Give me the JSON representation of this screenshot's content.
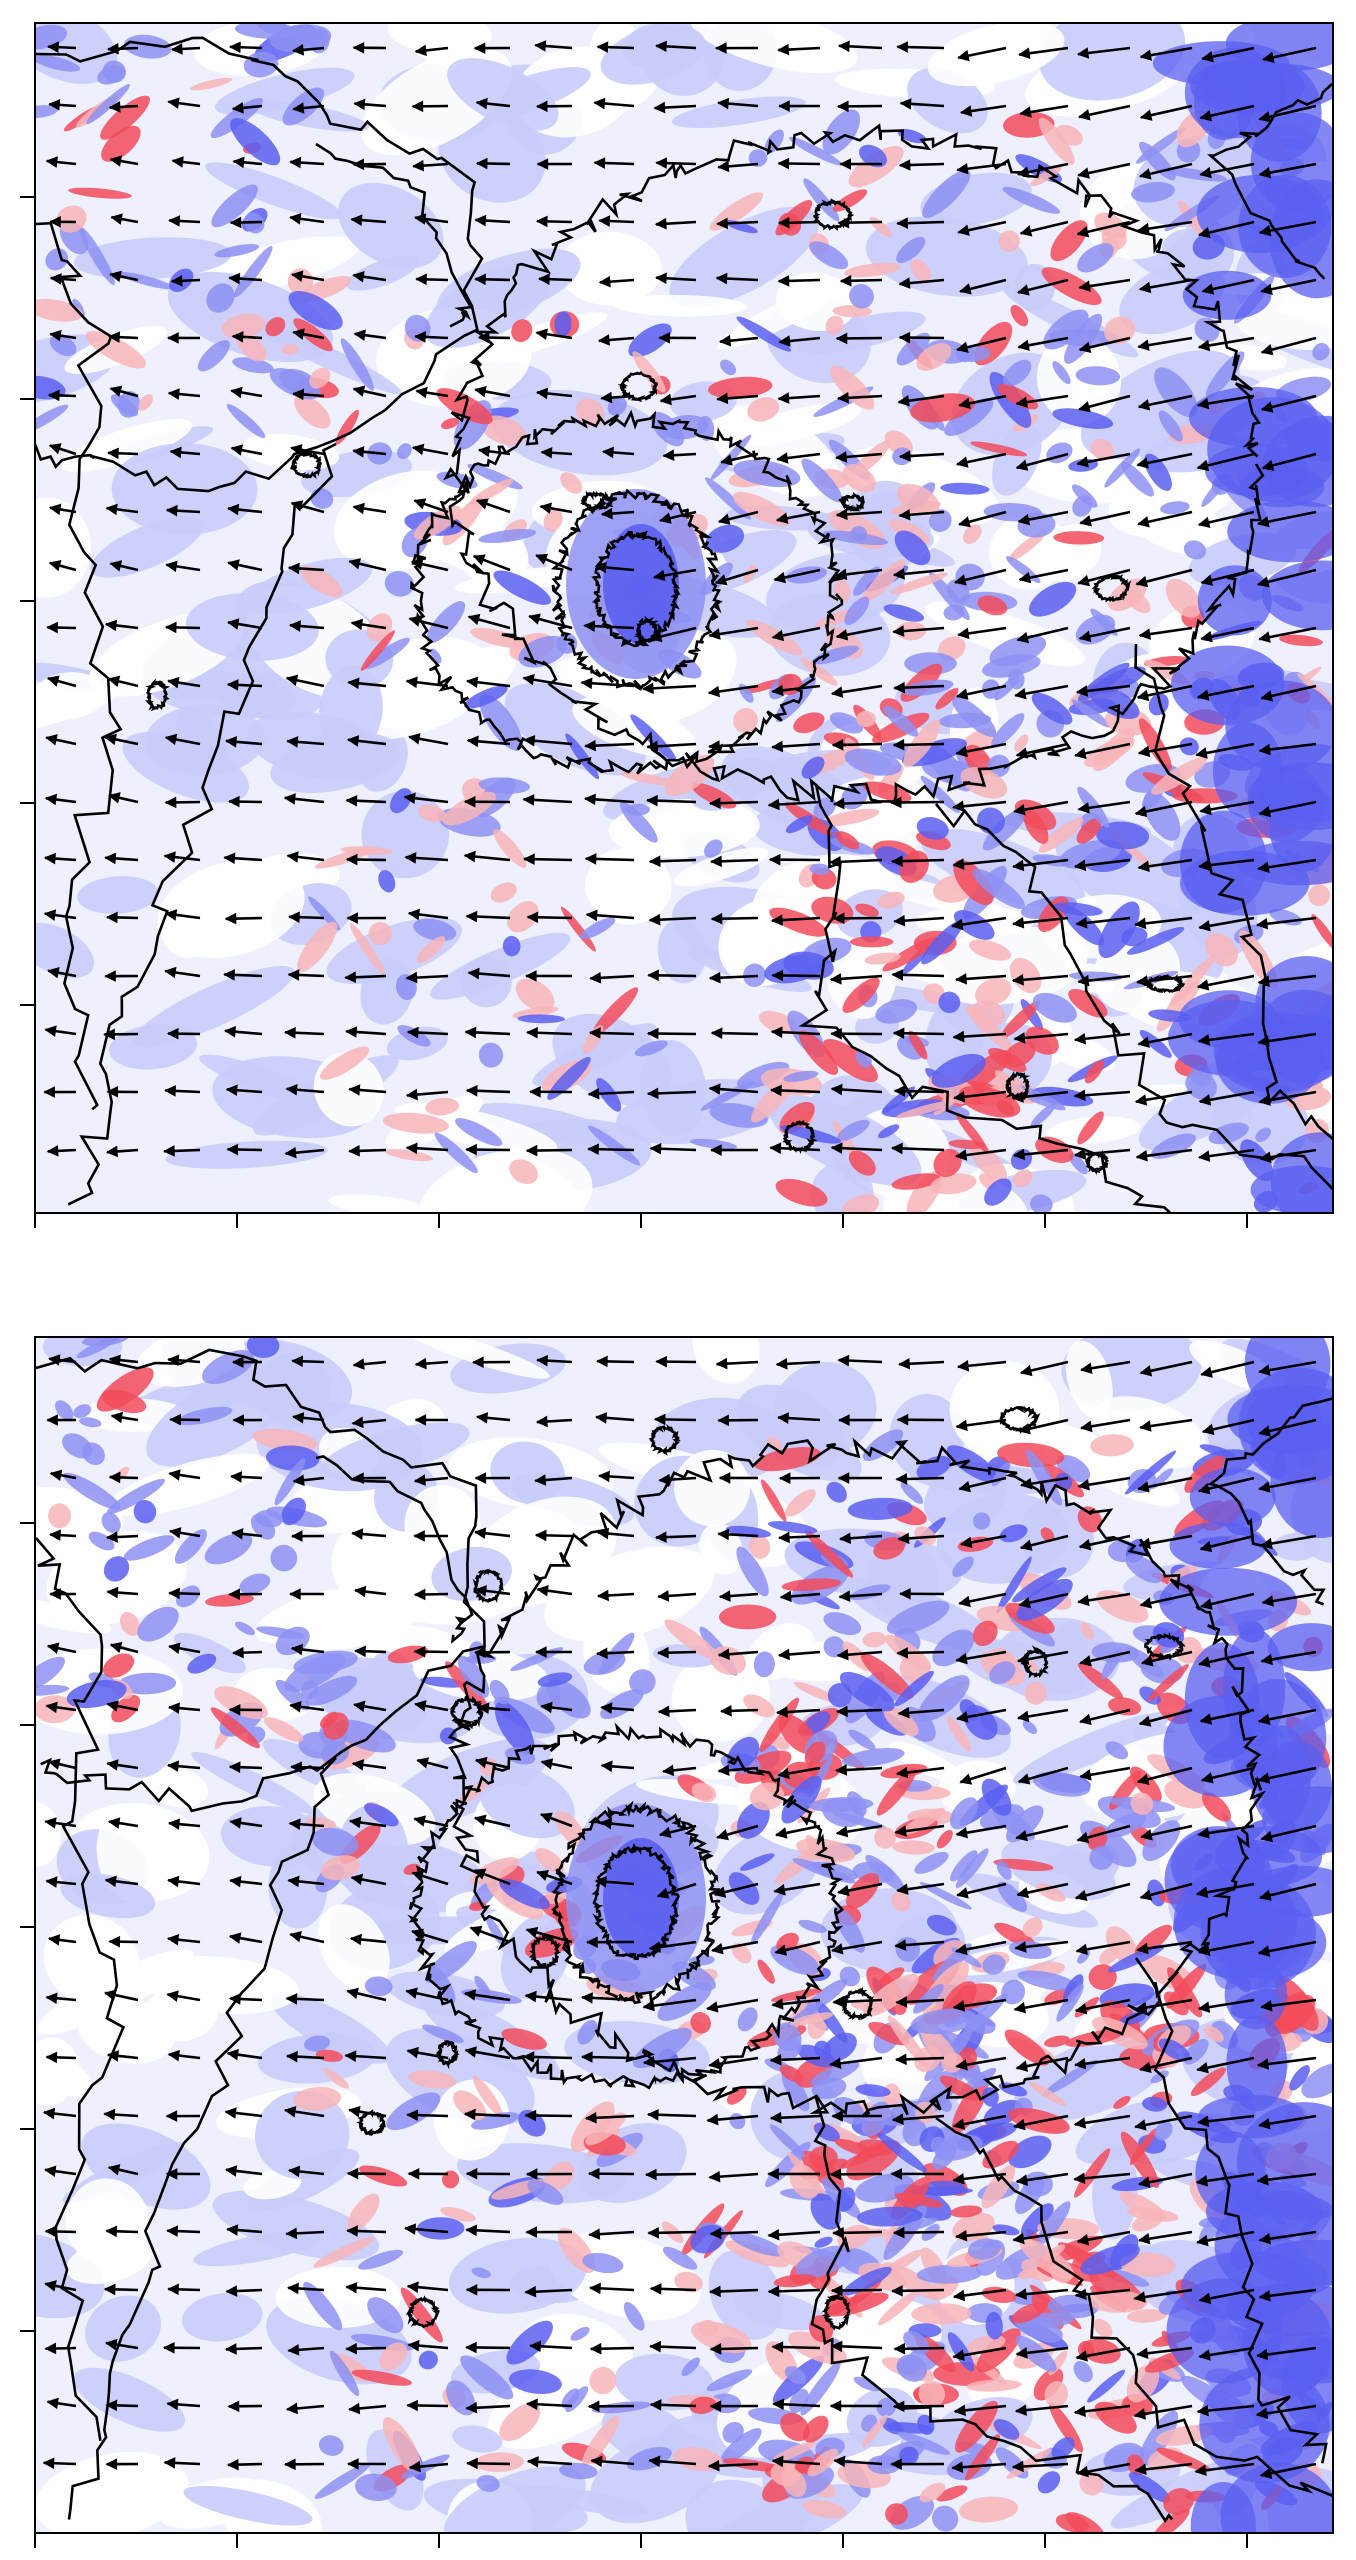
{
  "colors": {
    "positive_strong": "#f24b5a",
    "positive_weak": "#f7b5b9",
    "negative_strong": "#5a5ff0",
    "negative_mid": "#8d91f2",
    "negative_weak": "#c9ccfb",
    "neutral": "#ffffff",
    "contour": "#000000",
    "arrow": "#000000"
  },
  "icons": {
    "contour": "contour-line-icon",
    "arrow": "wind-vector-icon"
  },
  "panels": [
    {
      "id": "top",
      "x_ticks": 7,
      "y_ticks": 5,
      "shaded_field": "anomaly",
      "prevailing_flow": "westward"
    },
    {
      "id": "bottom",
      "x_ticks": 7,
      "y_ticks": 5,
      "shaded_field": "anomaly",
      "prevailing_flow": "westward"
    }
  ]
}
